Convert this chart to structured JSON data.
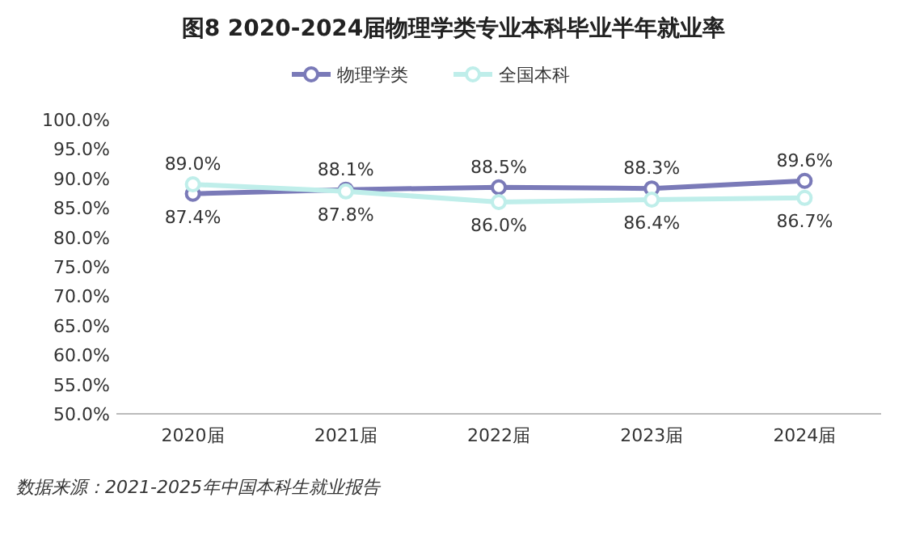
{
  "chart_data": {
    "type": "line",
    "title": "图8 2020-2024届物理学类专业本科毕业半年就业率",
    "categories": [
      "2020届",
      "2021届",
      "2022届",
      "2023届",
      "2024届"
    ],
    "series": [
      {
        "name": "物理学类",
        "color": "#7a7ab8",
        "values": [
          87.4,
          88.1,
          88.5,
          88.3,
          89.6
        ],
        "value_labels": [
          "87.4%",
          "88.1%",
          "88.5%",
          "88.3%",
          "89.6%"
        ]
      },
      {
        "name": "全国本科",
        "color": "#bfeeea",
        "values": [
          89.0,
          87.8,
          86.0,
          86.4,
          86.7
        ],
        "value_labels": [
          "89.0%",
          "87.8%",
          "86.0%",
          "86.4%",
          "86.7%"
        ]
      }
    ],
    "ylim": [
      50,
      100
    ],
    "yticks": [
      {
        "value": 50,
        "label": "50.0%"
      },
      {
        "value": 55,
        "label": "55.0%"
      },
      {
        "value": 60,
        "label": "60.0%"
      },
      {
        "value": 65,
        "label": "65.0%"
      },
      {
        "value": 70,
        "label": "70.0%"
      },
      {
        "value": 75,
        "label": "75.0%"
      },
      {
        "value": 80,
        "label": "80.0%"
      },
      {
        "value": 85,
        "label": "85.0%"
      },
      {
        "value": 90,
        "label": "90.0%"
      },
      {
        "value": 95,
        "label": "95.0%"
      },
      {
        "value": 100,
        "label": "100.0%"
      }
    ],
    "marker": "circle",
    "legend": "top",
    "grid": false,
    "annotations": [
      "数据来源：2021-2025年中国本科生就业报告"
    ]
  }
}
